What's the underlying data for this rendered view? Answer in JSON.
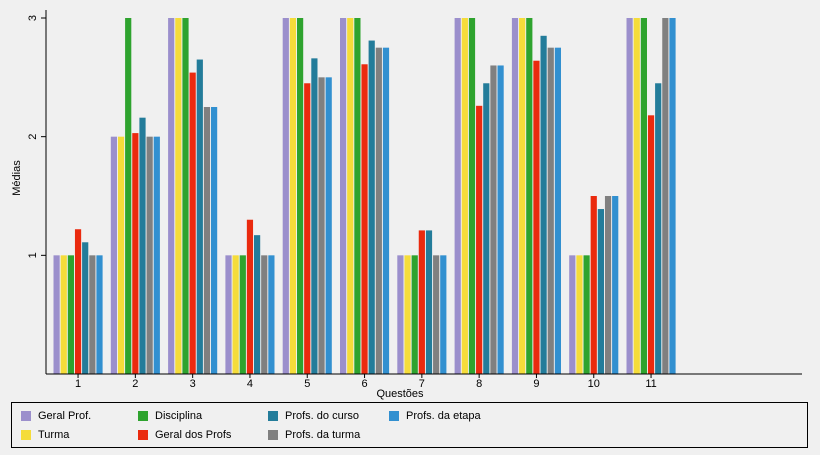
{
  "chart_data": {
    "type": "bar",
    "title": "",
    "xlabel": "Questões",
    "ylabel": "Médias",
    "ylim": [
      0,
      3
    ],
    "yticks": [
      1,
      2,
      3
    ],
    "grid": false,
    "legend_position": "bottom",
    "categories": [
      "1",
      "2",
      "3",
      "4",
      "5",
      "6",
      "7",
      "8",
      "9",
      "10",
      "11"
    ],
    "series": [
      {
        "name": "Geral Prof.",
        "color": "#9b8fcc",
        "values": [
          1,
          2,
          3,
          1,
          3,
          3,
          1,
          3,
          3,
          1,
          3
        ]
      },
      {
        "name": "Turma",
        "color": "#f5dc3a",
        "values": [
          1,
          2,
          3,
          1,
          3,
          3,
          1,
          3,
          3,
          1,
          3
        ]
      },
      {
        "name": "Disciplina",
        "color": "#2ea32e",
        "values": [
          1,
          3,
          3,
          1,
          3,
          3,
          1,
          3,
          3,
          1,
          3
        ]
      },
      {
        "name": "Geral dos Profs",
        "color": "#ea2a0e",
        "values": [
          1.22,
          2.03,
          2.54,
          1.3,
          2.45,
          2.61,
          1.21,
          2.26,
          2.64,
          1.5,
          2.18
        ]
      },
      {
        "name": "Profs. do curso",
        "color": "#237c9a",
        "values": [
          1.11,
          2.16,
          2.65,
          1.17,
          2.66,
          2.81,
          1.21,
          2.45,
          2.85,
          1.39,
          2.45
        ]
      },
      {
        "name": "Profs. da turma",
        "color": "#808080",
        "values": [
          1,
          2,
          2.25,
          1,
          2.5,
          2.75,
          1,
          2.6,
          2.75,
          1.5,
          3
        ]
      },
      {
        "name": "Profs. da etapa",
        "color": "#3290d0",
        "values": [
          1,
          2,
          2.25,
          1,
          2.5,
          2.75,
          1,
          2.6,
          2.75,
          1.5,
          3
        ]
      }
    ]
  }
}
